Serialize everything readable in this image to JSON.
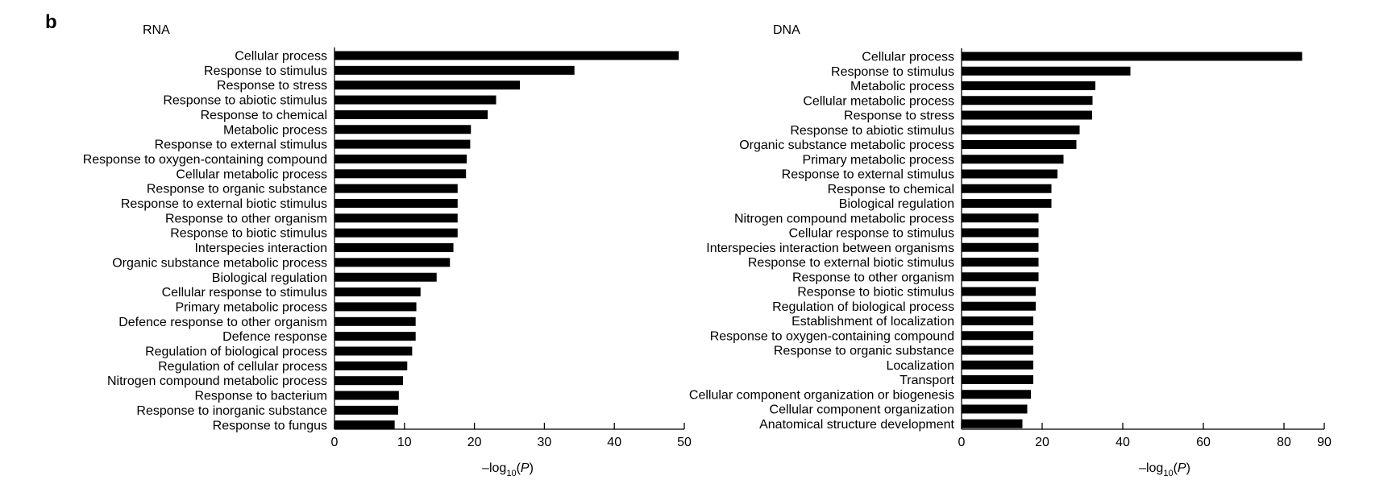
{
  "panel_label": "b",
  "chart_data": [
    {
      "type": "bar",
      "orientation": "horizontal",
      "title": "RNA",
      "xlabel": "–log10(P)",
      "xlabel_parts": {
        "prefix": "–log",
        "subscript": "10",
        "paren_open": "(",
        "italic": "P",
        "paren_close": ")"
      },
      "xlim": [
        0,
        50
      ],
      "xticks": [
        0,
        10,
        20,
        30,
        40,
        50
      ],
      "tick_labels": [
        "0",
        "10",
        "20",
        "30",
        "40",
        "50"
      ],
      "bar_color": "#000000",
      "grid": false,
      "categories": [
        "Cellular process",
        "Response to stimulus",
        "Response to stress",
        "Response to abiotic stimulus",
        "Response to chemical",
        "Metabolic process",
        "Response to external stimulus",
        "Response to oxygen-containing compound",
        "Cellular metabolic process",
        "Response to organic substance",
        "Response to external biotic stimulus",
        "Response to other organism",
        "Response to biotic stimulus",
        "Interspecies interaction",
        "Organic substance metabolic process",
        "Biological regulation",
        "Cellular response to stimulus",
        "Primary metabolic process",
        "Defence response to other organism",
        "Defence response",
        "Regulation of biological process",
        "Regulation of cellular process",
        "Nitrogen compound metabolic process",
        "Response to bacterium",
        "Response to inorganic substance",
        "Response to fungus"
      ],
      "values": [
        49.2,
        34.3,
        26.5,
        23.1,
        21.9,
        19.5,
        19.4,
        18.9,
        18.8,
        17.6,
        17.6,
        17.6,
        17.6,
        17.0,
        16.5,
        14.6,
        12.3,
        11.7,
        11.6,
        11.6,
        11.1,
        10.4,
        9.8,
        9.2,
        9.1,
        8.6
      ]
    },
    {
      "type": "bar",
      "orientation": "horizontal",
      "title": "DNA",
      "xlabel": "–log10(P)",
      "xlabel_parts": {
        "prefix": "–log",
        "subscript": "10",
        "paren_open": "(",
        "italic": "P",
        "paren_close": ")"
      },
      "xlim": [
        0,
        90
      ],
      "xticks": [
        0,
        20,
        40,
        60,
        80,
        90
      ],
      "tick_labels": [
        "0",
        "20",
        "40",
        "60",
        "80",
        "90"
      ],
      "bar_color": "#000000",
      "grid": false,
      "categories": [
        "Cellular process",
        "Response to stimulus",
        "Metabolic process",
        "Cellular metabolic process",
        "Response to stress",
        "Response to abiotic stimulus",
        "Organic substance metabolic process",
        "Primary metabolic process",
        "Response to external stimulus",
        "Response to chemical",
        "Biological regulation",
        "Nitrogen compound metabolic process",
        "Cellular response to stimulus",
        "Interspecies interaction between organisms",
        "Response to external biotic stimulus",
        "Response to other organism",
        "Response to biotic stimulus",
        "Regulation of biological process",
        "Establishment of localization",
        "Response to oxygen-containing compound",
        "Response to organic substance",
        "Localization",
        "Transport",
        "Cellular component organization or biogenesis",
        "Cellular component organization",
        "Anatomical structure development"
      ],
      "values": [
        84.5,
        41.9,
        33.2,
        32.5,
        32.4,
        29.3,
        28.5,
        25.3,
        23.8,
        22.3,
        22.3,
        19.1,
        19.1,
        19.1,
        19.1,
        19.1,
        18.4,
        18.4,
        17.8,
        17.8,
        17.8,
        17.8,
        17.8,
        17.2,
        16.3,
        15.1
      ]
    }
  ]
}
